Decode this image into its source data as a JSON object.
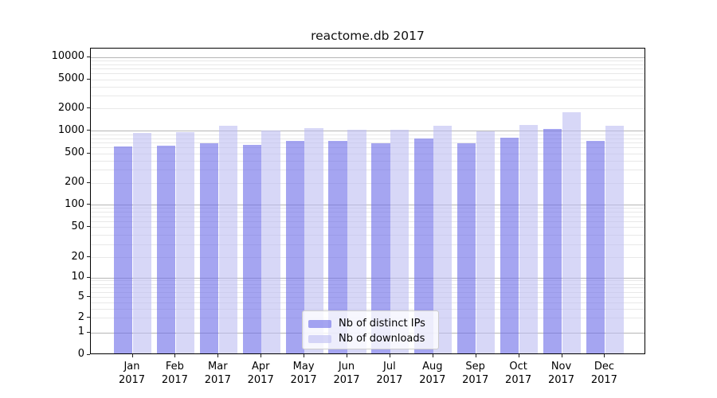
{
  "title": "reactome.db 2017",
  "chart_data": {
    "type": "bar",
    "title": "reactome.db 2017",
    "xlabel": "",
    "ylabel": "",
    "yscale": "symlog",
    "categories": [
      "Jan",
      "Feb",
      "Mar",
      "Apr",
      "May",
      "Jun",
      "Jul",
      "Aug",
      "Sep",
      "Oct",
      "Nov",
      "Dec"
    ],
    "year": "2017",
    "series": [
      {
        "name": "Nb of distinct IPs",
        "color": "#a6a6ee",
        "values": [
          600,
          615,
          660,
          620,
          710,
          710,
          650,
          765,
          660,
          780,
          1030,
          710
        ]
      },
      {
        "name": "Nb of downloads",
        "color": "#d8d8f7",
        "values": [
          910,
          935,
          1130,
          980,
          1060,
          1000,
          995,
          1125,
          950,
          1160,
          1715,
          1125
        ]
      }
    ],
    "yticks": [
      0,
      1,
      2,
      5,
      10,
      20,
      50,
      100,
      200,
      500,
      1000,
      2000,
      5000,
      10000
    ],
    "ylim": [
      0,
      14000
    ],
    "grid": true,
    "legend_position": "lower center"
  },
  "colors": {
    "bar_ips": "rgba(110,110,232,0.62)",
    "bar_downloads": "rgba(188,188,242,0.60)",
    "major_grid": "#b6b6b6",
    "minor_grid": "#e8e8e8",
    "axis": "#000000",
    "legend_border": "#cccccc"
  }
}
